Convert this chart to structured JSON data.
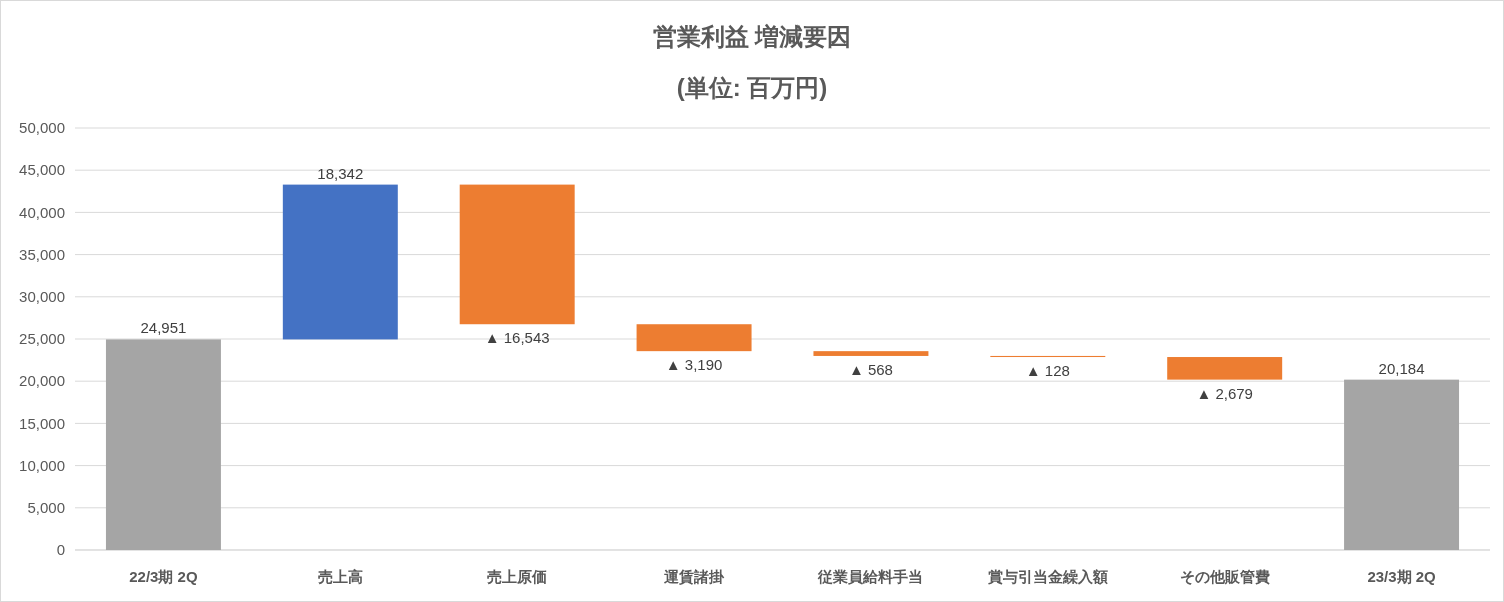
{
  "chart_data": {
    "type": "bar",
    "title": "営業利益 増減要因",
    "subtitle": "(単位: 百万円)",
    "categories": [
      "22/3期 2Q",
      "売上高",
      "売上原価",
      "運賃諸掛",
      "従業員給料手当",
      "賞与引当金繰入額",
      "その他販管費",
      "23/3期 2Q"
    ],
    "values": [
      24951,
      18342,
      -16543,
      -3190,
      -568,
      -128,
      -2679,
      20184
    ],
    "base": [
      0,
      24951,
      43293,
      26750,
      23560,
      22992,
      22864,
      0
    ],
    "colors": [
      "#a5a5a5",
      "#4472c4",
      "#ed7d31",
      "#ed7d31",
      "#ed7d31",
      "#ed7d31",
      "#ed7d31",
      "#a5a5a5"
    ],
    "value_labels": [
      "24,951",
      "18,342",
      "▲ 16,543",
      "▲ 3,190",
      "▲ 568",
      "▲ 128",
      "▲ 2,679",
      "20,184"
    ],
    "ylim": [
      0,
      50000
    ],
    "yticks": [
      0,
      {
        "value": 5000,
        "label": "5,000"
      },
      {
        "value": 10000,
        "label": "10,000"
      },
      {
        "value": 15000,
        "label": "15,000"
      },
      {
        "value": 20000,
        "label": "20,000"
      },
      {
        "value": 25000,
        "label": "25,000"
      },
      {
        "value": 30000,
        "label": "30,000"
      },
      {
        "value": 35000,
        "label": "35,000"
      },
      {
        "value": 40000,
        "label": "40,000"
      },
      {
        "value": 45000,
        "label": "45,000"
      },
      {
        "value": 50000,
        "label": "50,000"
      }
    ],
    "grid": true
  }
}
